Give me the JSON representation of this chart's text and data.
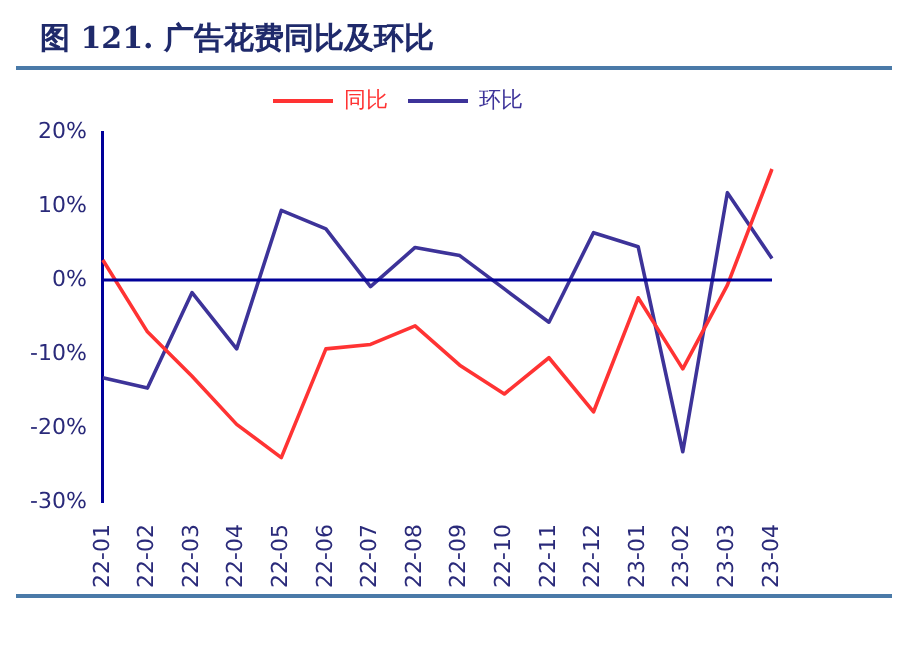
{
  "chart_data": {
    "type": "line",
    "title": "图  121. 广告花费同比及环比",
    "categories": [
      "22-01",
      "22-02",
      "22-03",
      "22-04",
      "22-05",
      "22-06",
      "22-07",
      "22-08",
      "22-09",
      "22-10",
      "22-11",
      "22-12",
      "23-01",
      "23-02",
      "23-03",
      "23-04"
    ],
    "series": [
      {
        "name": "同比",
        "color": "#ff3333",
        "values": [
          2.7,
          -7,
          -13,
          -19.5,
          -24,
          -9.3,
          -8.7,
          -6.2,
          -11.5,
          -15.4,
          -10.5,
          -17.8,
          -2.4,
          -12,
          -0.7,
          15
        ]
      },
      {
        "name": "环比",
        "color": "#3d3399",
        "values": [
          -13.2,
          -14.6,
          -1.7,
          -9.3,
          9.4,
          6.9,
          -0.9,
          4.4,
          3.3,
          -1.2,
          -5.7,
          6.4,
          4.5,
          -23.2,
          11.8,
          2.9
        ]
      }
    ],
    "ylim": [
      -30,
      20
    ],
    "yticks": [
      {
        "value": -30,
        "label": "-30%"
      },
      {
        "value": -20,
        "label": "-20%"
      },
      {
        "value": -10,
        "label": "-10%"
      },
      {
        "value": 0,
        "label": "0%"
      },
      {
        "value": 10,
        "label": "10%"
      },
      {
        "value": 20,
        "label": "20%"
      }
    ],
    "ref_lines": [
      {
        "axis": "y",
        "value": 0,
        "color": "#000099"
      }
    ],
    "grid": false,
    "legend": "top",
    "marker": "none",
    "line_style": "solid"
  }
}
